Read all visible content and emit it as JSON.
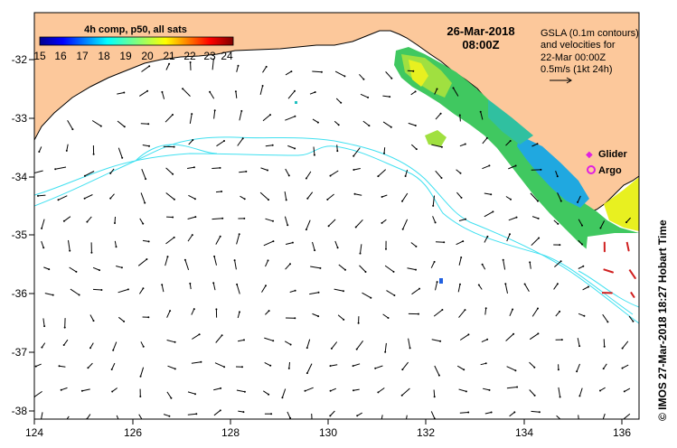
{
  "map": {
    "title_colorbar": "4h comp, p50, all sats",
    "colorbar_ticks": [
      "15",
      "16",
      "17",
      "18",
      "19",
      "20",
      "21",
      "22",
      "23",
      "24"
    ],
    "date": "26-Mar-2018",
    "time": "08:00Z",
    "notes": [
      "GSLA (0.1m contours)",
      "and velocities for",
      "22-Mar 00:00Z",
      "0.5m/s (1kt 24h)"
    ],
    "legend": {
      "glider": "Glider",
      "argo": "Argo"
    },
    "credit": "© IMOS 27-Mar-2018 18:27 Hobart Time",
    "x_ticks": [
      "124",
      "126",
      "128",
      "130",
      "132",
      "134",
      "136"
    ],
    "y_ticks": [
      "-32",
      "-33",
      "-34",
      "-35",
      "-36",
      "-37",
      "-38"
    ],
    "colors": {
      "land": "#fcc89b",
      "contour": "#40e0f0",
      "glider": "#e020e0",
      "argo": "#e020e0"
    }
  }
}
